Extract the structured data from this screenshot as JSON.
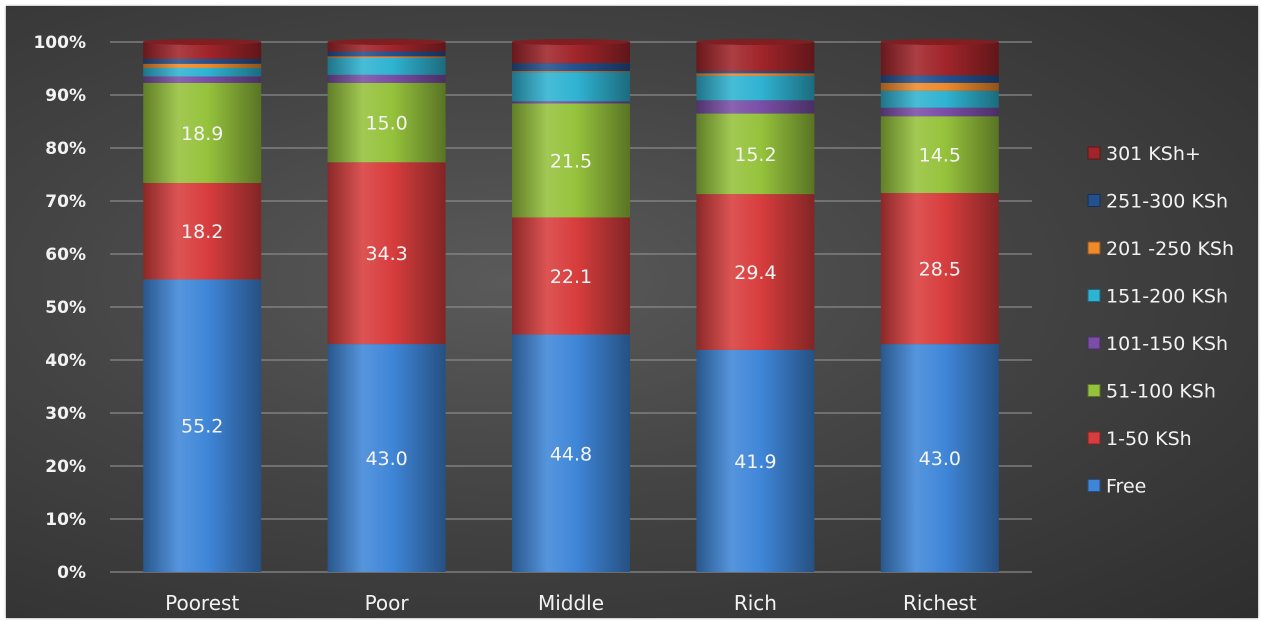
{
  "chart_data": {
    "type": "bar",
    "stacked": true,
    "categories": [
      "Poorest",
      "Poor",
      "Middle",
      "Rich",
      "Richest"
    ],
    "y_ticks": [
      "0%",
      "10%",
      "20%",
      "30%",
      "40%",
      "50%",
      "60%",
      "70%",
      "80%",
      "90%",
      "100%"
    ],
    "ylim": [
      0,
      100
    ],
    "grid": true,
    "legend_position": "right",
    "series": [
      {
        "name": "Free",
        "color": "#3f86d8",
        "values": [
          55.2,
          43.0,
          44.8,
          41.9,
          43.0
        ],
        "labels": [
          "55.2",
          "43.0",
          "44.8",
          "41.9",
          "43.0"
        ]
      },
      {
        "name": "1-50 KSh",
        "color": "#d83d3d",
        "values": [
          18.2,
          34.3,
          22.1,
          29.4,
          28.5
        ],
        "labels": [
          "18.2",
          "34.3",
          "22.1",
          "29.4",
          "28.5"
        ]
      },
      {
        "name": "51-100 KSh",
        "color": "#95c23c",
        "values": [
          18.9,
          15.0,
          21.5,
          15.2,
          14.5
        ],
        "labels": [
          "18.9",
          "15.0",
          "21.5",
          "15.2",
          "14.5"
        ]
      },
      {
        "name": "101-150 KSh",
        "color": "#7a4ea8",
        "values": [
          1.2,
          1.5,
          0.4,
          2.5,
          1.6
        ]
      },
      {
        "name": "151-200 KSh",
        "color": "#2fb3d2",
        "values": [
          1.6,
          3.2,
          5.5,
          4.6,
          3.2
        ]
      },
      {
        "name": "201 -250 KSh",
        "color": "#ef8a2c",
        "values": [
          0.8,
          0.3,
          0.2,
          0.5,
          1.5
        ]
      },
      {
        "name": "251-300 KSh",
        "color": "#24508f",
        "values": [
          0.9,
          0.9,
          1.5,
          0.4,
          1.4
        ]
      },
      {
        "name": "301 KSh+",
        "color": "#a0252a",
        "values": [
          3.2,
          1.8,
          4.0,
          5.5,
          6.3
        ]
      }
    ]
  }
}
